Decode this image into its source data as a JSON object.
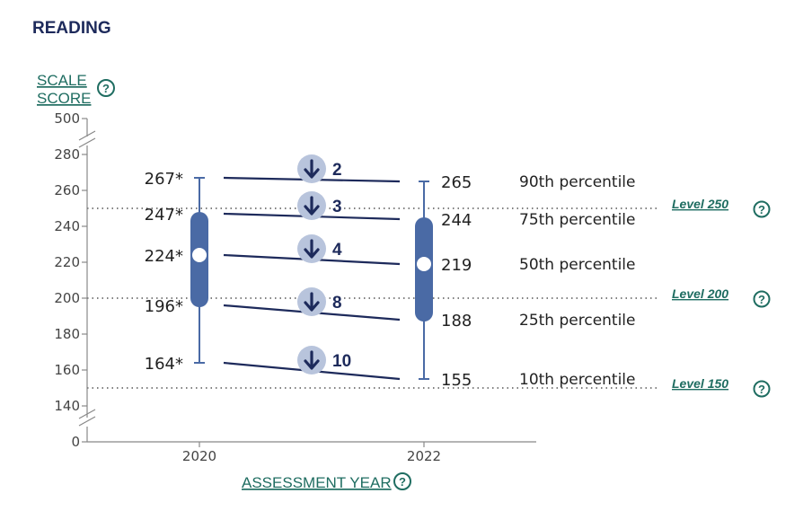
{
  "header": {
    "title": "READING"
  },
  "y_axis": {
    "label_line1": "SCALE",
    "label_line2": "SCORE",
    "help": "?"
  },
  "x_axis": {
    "label": "ASSESSMENT YEAR",
    "help": "?"
  },
  "colors": {
    "box": "#4a6aa5",
    "line": "#1d2a5b",
    "accent": "#1f6d61",
    "circle": "#b8c4dc"
  },
  "chart_data": {
    "type": "box",
    "x": [
      "2020",
      "2022"
    ],
    "y_ticks": [
      "500",
      "280",
      "260",
      "240",
      "220",
      "200",
      "180",
      "160",
      "140",
      "0"
    ],
    "y_range": [
      140,
      280
    ],
    "y_break": true,
    "percentiles": [
      "90th percentile",
      "75th percentile",
      "50th percentile",
      "25th percentile",
      "10th percentile"
    ],
    "series": [
      {
        "year": "2020",
        "values": [
          267,
          247,
          224,
          196,
          164
        ],
        "labels": [
          "267*",
          "247*",
          "224*",
          "196*",
          "164*"
        ]
      },
      {
        "year": "2022",
        "values": [
          265,
          244,
          219,
          188,
          155
        ],
        "labels": [
          "265",
          "244",
          "219",
          "188",
          "155"
        ]
      }
    ],
    "changes": [
      {
        "label": "2",
        "direction": "down"
      },
      {
        "label": "3",
        "direction": "down"
      },
      {
        "label": "4",
        "direction": "down"
      },
      {
        "label": "8",
        "direction": "down"
      },
      {
        "label": "10",
        "direction": "down"
      }
    ],
    "levels": [
      {
        "label": "Level 250",
        "value": 250,
        "help": "?"
      },
      {
        "label": "Level 200",
        "value": 200,
        "help": "?"
      },
      {
        "label": "Level 150",
        "value": 150,
        "help": "?"
      }
    ]
  }
}
